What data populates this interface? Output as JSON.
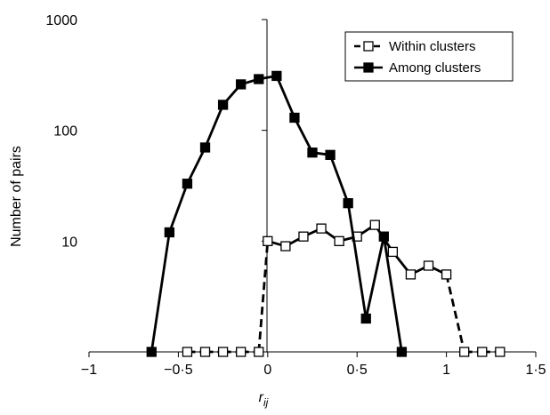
{
  "chart_data": {
    "type": "line",
    "title": "",
    "xlabel": "r",
    "xlabel_sub": "ij",
    "ylabel": "Number of pairs",
    "yscale": "log",
    "xlim": [
      -1,
      1.5
    ],
    "ylim": [
      1,
      1000
    ],
    "xticks": [
      -1,
      -0.5,
      0,
      0.5,
      1,
      1.5
    ],
    "xtick_labels": [
      "−1",
      "−0·5",
      "0",
      "0·5",
      "1",
      "1·5"
    ],
    "yticks": [
      10,
      100,
      1000
    ],
    "ytick_labels": [
      "10",
      "100",
      "1000"
    ],
    "grid": false,
    "legend_position": "top-right",
    "series": [
      {
        "name": "Within clusters",
        "marker": "open-square",
        "line_style": "dashed-where-zero",
        "color": "#000000",
        "points": [
          {
            "x": -0.45,
            "y": 0
          },
          {
            "x": -0.35,
            "y": 0
          },
          {
            "x": -0.25,
            "y": 0
          },
          {
            "x": -0.15,
            "y": 0
          },
          {
            "x": -0.05,
            "y": 0
          },
          {
            "x": 0.0,
            "y": 10
          },
          {
            "x": 0.1,
            "y": 9
          },
          {
            "x": 0.2,
            "y": 11
          },
          {
            "x": 0.3,
            "y": 13
          },
          {
            "x": 0.4,
            "y": 10
          },
          {
            "x": 0.5,
            "y": 11
          },
          {
            "x": 0.6,
            "y": 14
          },
          {
            "x": 0.7,
            "y": 8
          },
          {
            "x": 0.8,
            "y": 5
          },
          {
            "x": 0.9,
            "y": 6
          },
          {
            "x": 1.0,
            "y": 5
          },
          {
            "x": 1.1,
            "y": 0
          },
          {
            "x": 1.2,
            "y": 0
          },
          {
            "x": 1.3,
            "y": 0
          }
        ]
      },
      {
        "name": "Among clusters",
        "marker": "filled-square",
        "line_style": "solid",
        "color": "#000000",
        "points": [
          {
            "x": -0.65,
            "y": 0
          },
          {
            "x": -0.55,
            "y": 12
          },
          {
            "x": -0.45,
            "y": 33
          },
          {
            "x": -0.35,
            "y": 70
          },
          {
            "x": -0.25,
            "y": 170
          },
          {
            "x": -0.15,
            "y": 260
          },
          {
            "x": -0.05,
            "y": 290
          },
          {
            "x": 0.05,
            "y": 310
          },
          {
            "x": 0.15,
            "y": 130
          },
          {
            "x": 0.25,
            "y": 63
          },
          {
            "x": 0.35,
            "y": 60
          },
          {
            "x": 0.45,
            "y": 22
          },
          {
            "x": 0.55,
            "y": 2
          },
          {
            "x": 0.65,
            "y": 11
          },
          {
            "x": 0.75,
            "y": 0
          }
        ]
      }
    ]
  }
}
